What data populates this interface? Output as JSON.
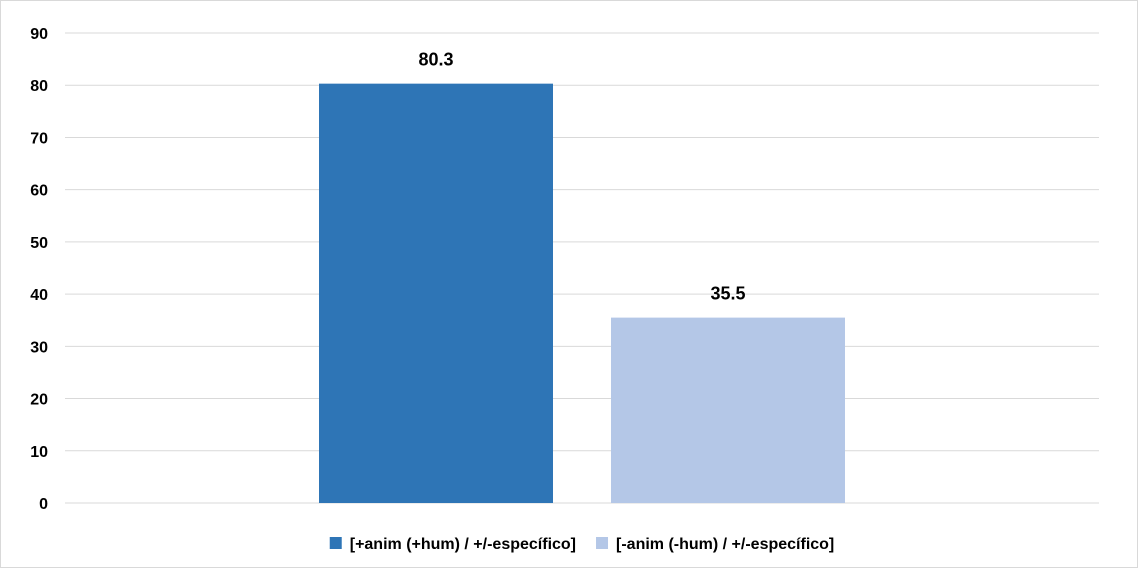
{
  "chart_data": {
    "type": "bar",
    "title": "",
    "xlabel": "",
    "ylabel": "",
    "ylim": [
      0,
      90
    ],
    "yticks": [
      0,
      10,
      20,
      30,
      40,
      50,
      60,
      70,
      80,
      90
    ],
    "grid": true,
    "legend_position": "bottom",
    "series": [
      {
        "name": "[+anim (+hum) / +/-específico]",
        "value": 80.3,
        "label": "80.3",
        "color": "#2e75b6"
      },
      {
        "name": "[-anim (-hum) / +/-específico]",
        "value": 35.5,
        "label": "35.5",
        "color": "#b4c7e7"
      }
    ]
  }
}
